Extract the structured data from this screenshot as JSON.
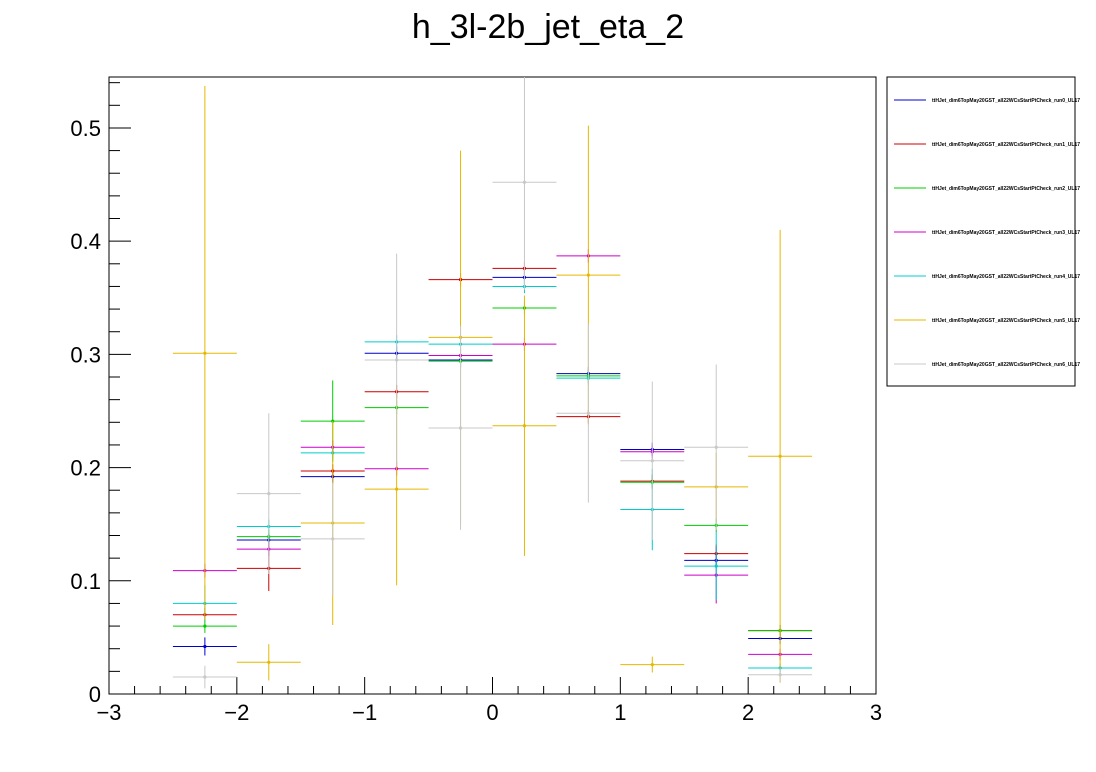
{
  "chart_data": {
    "type": "scatter",
    "title": "h_3l-2b_jet_eta_2",
    "xlabel": "",
    "ylabel": "",
    "xlim": [
      -3,
      3
    ],
    "ylim": [
      0,
      0.545
    ],
    "x_ticks": [
      -3,
      -2,
      -1,
      0,
      1,
      2,
      3
    ],
    "x_tick_labels": [
      "−3",
      "−2",
      "−1",
      "0",
      "1",
      "2",
      "3"
    ],
    "y_ticks": [
      0,
      0.1,
      0.2,
      0.3,
      0.4,
      0.5
    ],
    "y_tick_labels": [
      "0",
      "0.1",
      "0.2",
      "0.3",
      "0.4",
      "0.5"
    ],
    "grid": false,
    "legend_position": "right",
    "bin_edges": [
      -2.5,
      -2,
      -1.5,
      -1,
      -0.5,
      0,
      0.5,
      1,
      1.5,
      2,
      2.5
    ],
    "series": [
      {
        "name": "ttHJet_dim6TopMay20GST_all22WCsStartPtCheck_run0_UL17",
        "color": "#0000cc",
        "values": [
          0.042,
          0.136,
          0.192,
          0.301,
          0.295,
          0.368,
          0.283,
          0.216,
          0.118,
          0.049
        ],
        "errors": [
          0.008,
          0.006,
          0.006,
          0.006,
          0.006,
          0.006,
          0.006,
          0.006,
          0.006,
          0.005
        ]
      },
      {
        "name": "ttHJet_dim6TopMay20GST_all22WCsStartPtCheck_run1_UL17",
        "color": "#cc0000",
        "values": [
          0.07,
          0.111,
          0.197,
          0.267,
          0.366,
          0.376,
          0.245,
          0.188,
          0.124,
          0.056
        ],
        "errors": [
          0.006,
          0.02,
          0.006,
          0.006,
          0.006,
          0.006,
          0.006,
          0.006,
          0.008,
          0.005
        ]
      },
      {
        "name": "ttHJet_dim6TopMay20GST_all22WCsStartPtCheck_run2_UL17",
        "color": "#00cc00",
        "values": [
          0.06,
          0.139,
          0.241,
          0.253,
          0.294,
          0.341,
          0.281,
          0.187,
          0.149,
          0.056
        ],
        "errors": [
          0.006,
          0.006,
          0.036,
          0.006,
          0.006,
          0.006,
          0.006,
          0.006,
          0.006,
          0.005
        ]
      },
      {
        "name": "ttHJet_dim6TopMay20GST_all22WCsStartPtCheck_run3_UL17",
        "color": "#cc00cc",
        "values": [
          0.109,
          0.128,
          0.218,
          0.199,
          0.299,
          0.309,
          0.387,
          0.214,
          0.105,
          0.035
        ],
        "errors": [
          0.006,
          0.006,
          0.006,
          0.006,
          0.006,
          0.006,
          0.006,
          0.006,
          0.025,
          0.005
        ]
      },
      {
        "name": "ttHJet_dim6TopMay20GST_all22WCsStartPtCheck_run4_UL17",
        "color": "#00cccc",
        "values": [
          0.08,
          0.148,
          0.213,
          0.311,
          0.309,
          0.36,
          0.279,
          0.163,
          0.113,
          0.023
        ],
        "errors": [
          0.016,
          0.006,
          0.006,
          0.006,
          0.006,
          0.006,
          0.006,
          0.036,
          0.03,
          0.004
        ]
      },
      {
        "name": "ttHJet_dim6TopMay20GST_all22WCsStartPtCheck_run5_UL17",
        "color": "#e6b800",
        "values": [
          0.301,
          0.028,
          0.151,
          0.181,
          0.315,
          0.237,
          0.37,
          0.026,
          0.183,
          0.21
        ],
        "errors": [
          0.236,
          0.016,
          0.09,
          0.085,
          0.165,
          0.115,
          0.132,
          0.007,
          0.03,
          0.2
        ]
      },
      {
        "name": "ttHJet_dim6TopMay20GST_all22WCsStartPtCheck_run6_UL17",
        "color": "#c8c8c8",
        "values": [
          0.015,
          0.177,
          0.137,
          0.295,
          0.235,
          0.452,
          0.248,
          0.206,
          0.218,
          0.017
        ],
        "errors": [
          0.01,
          0.071,
          0.05,
          0.094,
          0.09,
          0.095,
          0.079,
          0.07,
          0.073,
          0.006
        ]
      }
    ]
  }
}
